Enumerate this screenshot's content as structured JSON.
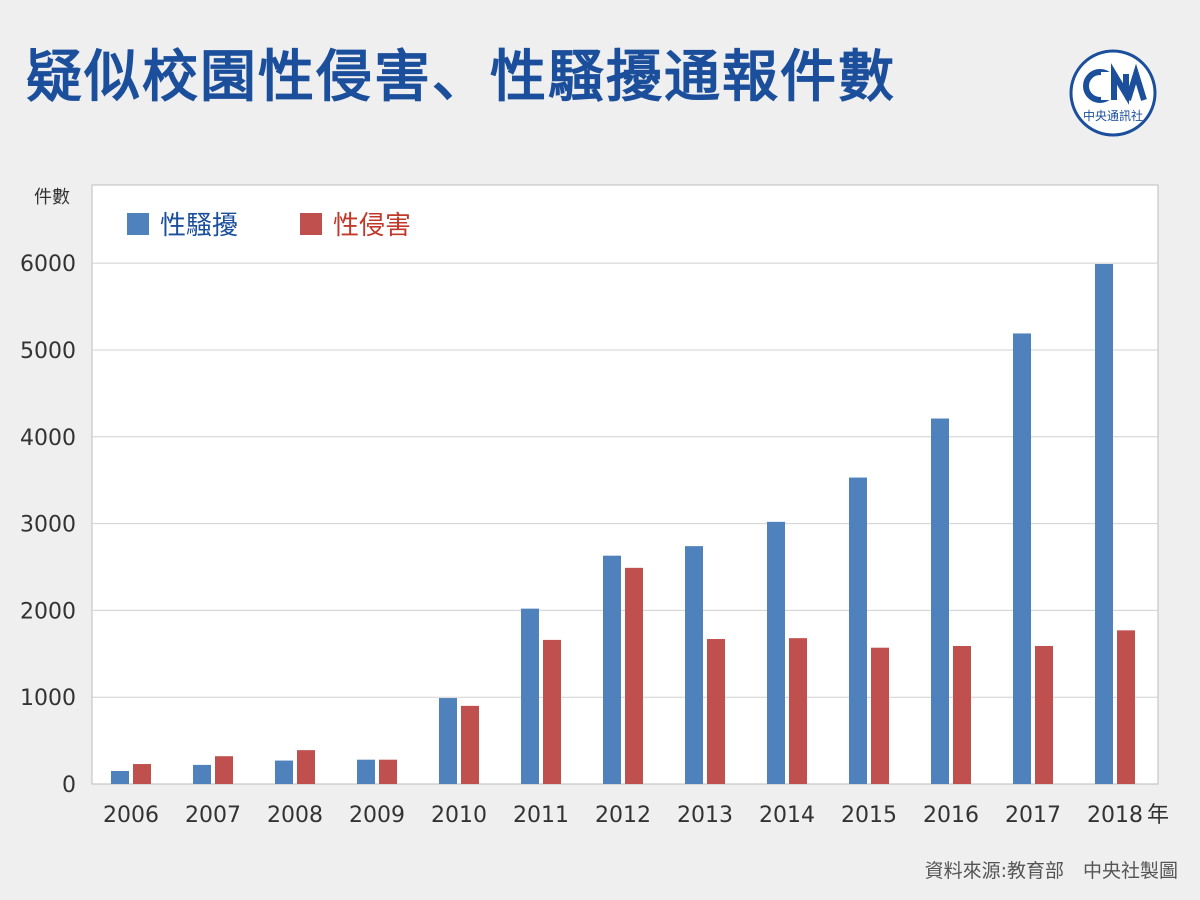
{
  "header": {
    "title": "疑似校園性侵害、性騷擾通報件數",
    "logo_text": "中央通訊社"
  },
  "chart_data": {
    "type": "bar",
    "ylabel": "件數",
    "xlabel_unit": "年",
    "categories": [
      "2006",
      "2007",
      "2008",
      "2009",
      "2010",
      "2011",
      "2012",
      "2013",
      "2014",
      "2015",
      "2016",
      "2017",
      "2018"
    ],
    "ylim": [
      0,
      6900
    ],
    "yticks": [
      0,
      1000,
      2000,
      3000,
      4000,
      5000,
      6000
    ],
    "grid": true,
    "legend_position": "top-left",
    "series": [
      {
        "name": "性騷擾",
        "color": "#4f81bd",
        "values": [
          150,
          220,
          270,
          280,
          990,
          2020,
          2630,
          2740,
          3020,
          3530,
          4210,
          5190,
          5990
        ]
      },
      {
        "name": "性侵害",
        "color": "#c0504d",
        "values": [
          230,
          320,
          390,
          280,
          900,
          1660,
          2490,
          1670,
          1680,
          1570,
          1590,
          1590,
          1770
        ]
      }
    ]
  },
  "footer": {
    "source": "資料來源:教育部　中央社製圖"
  }
}
